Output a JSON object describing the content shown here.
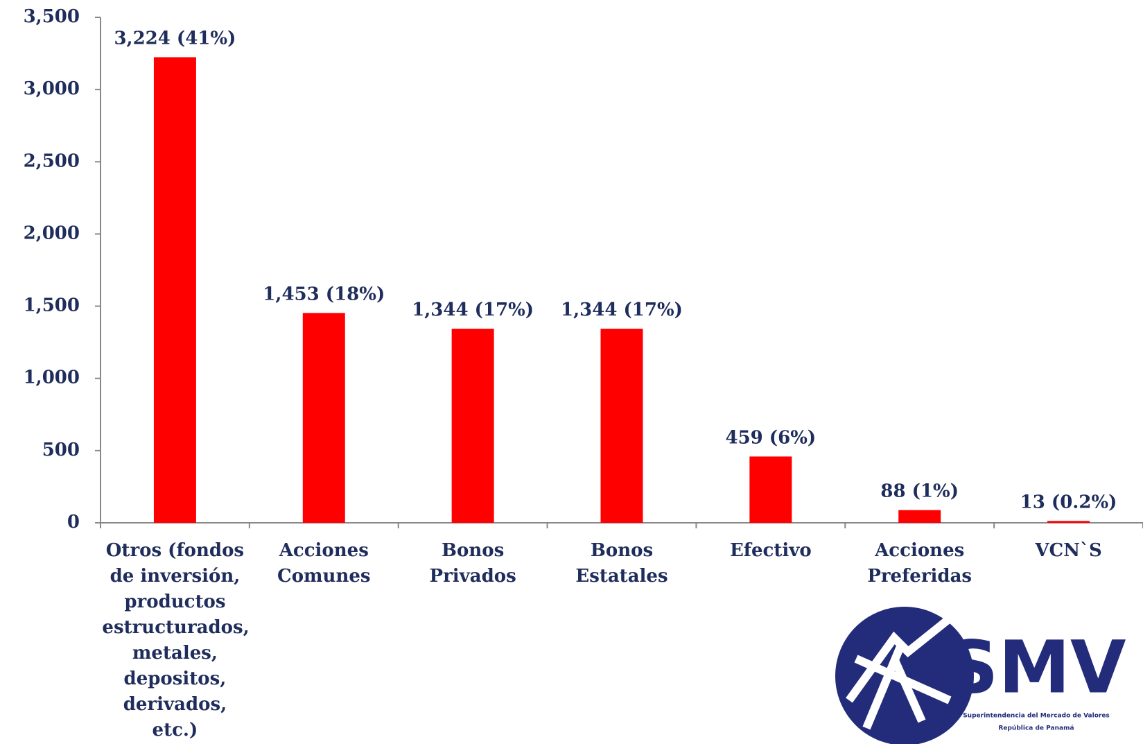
{
  "chart_data": {
    "type": "bar",
    "categories": [
      "Otros (fondos de inversión, productos estructurados, metales, depositos, derivados, etc.)",
      "Acciones Comunes",
      "Bonos Privados",
      "Bonos Estatales",
      "Efectivo",
      "Acciones Preferidas",
      "VCN`S"
    ],
    "values": [
      3224,
      1453,
      1344,
      1344,
      459,
      88,
      13
    ],
    "value_labels": [
      "3,224 (41%)",
      "1,453 (18%)",
      "1,344 (17%)",
      "1,344 (17%)",
      "459 (6%)",
      "88 (1%)",
      "13 (0.2%)"
    ],
    "color": "#ff0000",
    "ylim": [
      0,
      3500
    ],
    "yticks": [
      0,
      500,
      {
        "value": 1000,
        "label": "1,000"
      },
      {
        "value": 1500,
        "label": "1,500"
      },
      {
        "value": 2000,
        "label": "2,000"
      },
      {
        "value": 2500,
        "label": "2,500"
      },
      {
        "value": 3000,
        "label": "3,000"
      },
      {
        "value": 3500,
        "label": "3,500"
      }
    ],
    "grid": false
  },
  "logo": {
    "name": "SMV",
    "line1": "Superintendencia del Mercado de Valores",
    "line2": "República de Panamá"
  }
}
